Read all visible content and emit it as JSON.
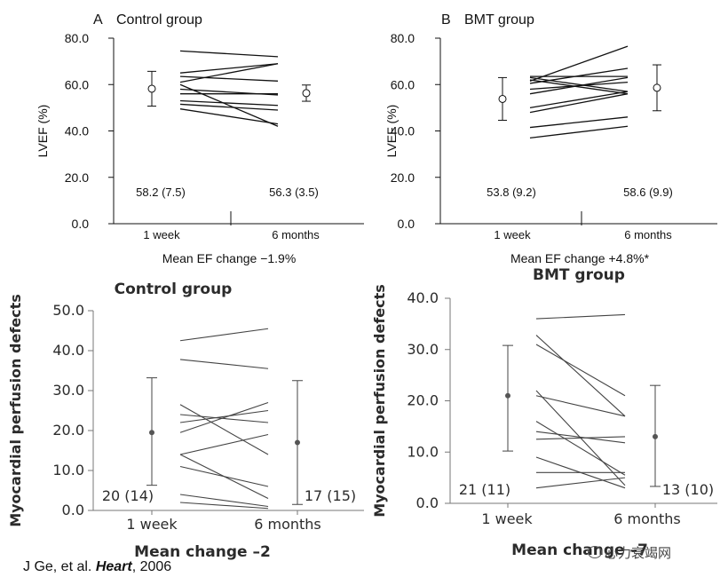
{
  "chart_data": [
    {
      "id": "A",
      "type": "line",
      "panel_letter": "A",
      "title": "Control group",
      "ylabel": "LVEF (%)",
      "ylim": [
        0,
        80
      ],
      "yticks": [
        "0.0",
        "20.0",
        "40.0",
        "60.0",
        "80.0"
      ],
      "yticks_values": [
        0,
        20,
        40,
        60,
        80
      ],
      "categories": [
        "1 week",
        "6 months"
      ],
      "means": [
        58.2,
        56.3
      ],
      "errors": [
        7.5,
        3.5
      ],
      "mean_labels": [
        "58.2 (7.5)",
        "56.3 (3.5)"
      ],
      "footer": "Mean EF change −1.9%",
      "series": [
        {
          "values": [
            74.5,
            72.0
          ]
        },
        {
          "values": [
            65.0,
            69.0
          ]
        },
        {
          "values": [
            63.5,
            61.5
          ]
        },
        {
          "values": [
            61.0,
            69.0
          ]
        },
        {
          "values": [
            60.0,
            42.0
          ]
        },
        {
          "values": [
            58.0,
            55.5
          ]
        },
        {
          "values": [
            56.0,
            56.0
          ]
        },
        {
          "values": [
            53.0,
            51.0
          ]
        },
        {
          "values": [
            51.5,
            49.0
          ]
        },
        {
          "values": [
            49.5,
            43.0
          ]
        }
      ]
    },
    {
      "id": "B",
      "type": "line",
      "panel_letter": "B",
      "title": "BMT group",
      "ylabel": "LVEF (%)",
      "ylim": [
        0,
        80
      ],
      "yticks": [
        "0.0",
        "20.0",
        "40.0",
        "60.0",
        "80.0"
      ],
      "yticks_values": [
        0,
        20,
        40,
        60,
        80
      ],
      "categories": [
        "1 week",
        "6 months"
      ],
      "means": [
        53.8,
        58.6
      ],
      "errors": [
        9.2,
        9.9
      ],
      "mean_labels": [
        "53.8 (9.2)",
        "58.6 (9.9)"
      ],
      "footer": "Mean EF change +4.8%*",
      "series": [
        {
          "values": [
            63.5,
            63.5
          ]
        },
        {
          "values": [
            63.0,
            57.0
          ]
        },
        {
          "values": [
            62.0,
            56.0
          ]
        },
        {
          "values": [
            61.5,
            76.5
          ]
        },
        {
          "values": [
            60.5,
            67.0
          ]
        },
        {
          "values": [
            58.0,
            61.0
          ]
        },
        {
          "values": [
            56.0,
            63.0
          ]
        },
        {
          "values": [
            50.0,
            57.0
          ]
        },
        {
          "values": [
            48.0,
            56.0
          ]
        },
        {
          "values": [
            41.5,
            46.0
          ]
        },
        {
          "values": [
            37.0,
            42.0
          ]
        }
      ]
    },
    {
      "id": "C",
      "type": "line",
      "title": "Control group",
      "ylabel": "Myocardial perfusion defects",
      "ylim": [
        0,
        50
      ],
      "yticks": [
        "0.0",
        "10.0",
        "20.0",
        "30.0",
        "40.0",
        "50.0"
      ],
      "yticks_values": [
        0,
        10,
        20,
        30,
        40,
        50
      ],
      "categories": [
        "1 week",
        "6 months"
      ],
      "means": [
        19.5,
        17.0
      ],
      "error_ranges": [
        [
          6.3,
          33.2
        ],
        [
          1.5,
          32.5
        ]
      ],
      "mean_labels": [
        "20 (14)",
        "17 (15)"
      ],
      "footer": "Mean change –2",
      "series": [
        {
          "values": [
            42.5,
            45.5
          ]
        },
        {
          "values": [
            37.8,
            35.5
          ]
        },
        {
          "values": [
            26.5,
            14.0
          ]
        },
        {
          "values": [
            24.0,
            22.0
          ]
        },
        {
          "values": [
            22.0,
            25.0
          ]
        },
        {
          "values": [
            19.5,
            27.0
          ]
        },
        {
          "values": [
            14.0,
            19.0
          ]
        },
        {
          "values": [
            14.0,
            3.0
          ]
        },
        {
          "values": [
            11.0,
            6.0
          ]
        },
        {
          "values": [
            4.0,
            1.0
          ]
        },
        {
          "values": [
            2.0,
            0.5
          ]
        }
      ]
    },
    {
      "id": "D",
      "type": "line",
      "title": "BMT group",
      "ylabel": "Myocardial perfusion defects",
      "ylim": [
        0,
        40
      ],
      "yticks": [
        "0.0",
        "10.0",
        "20.0",
        "30.0",
        "40.0"
      ],
      "yticks_values": [
        0,
        10,
        20,
        30,
        40
      ],
      "categories": [
        "1 week",
        "6 months"
      ],
      "means": [
        21.0,
        13.0
      ],
      "error_ranges": [
        [
          10.2,
          30.8
        ],
        [
          3.3,
          23.0
        ]
      ],
      "mean_labels": [
        "21 (11)",
        "13 (10)"
      ],
      "footer": "Mean change –7",
      "series": [
        {
          "values": [
            36.0,
            36.8
          ]
        },
        {
          "values": [
            32.8,
            17.0
          ]
        },
        {
          "values": [
            31.0,
            21.0
          ]
        },
        {
          "values": [
            22.0,
            3.5
          ]
        },
        {
          "values": [
            21.0,
            17.0
          ]
        },
        {
          "values": [
            16.0,
            5.5
          ]
        },
        {
          "values": [
            14.0,
            11.8
          ]
        },
        {
          "values": [
            12.5,
            13.0
          ]
        },
        {
          "values": [
            9.0,
            3.0
          ]
        },
        {
          "values": [
            6.0,
            6.0
          ]
        },
        {
          "values": [
            3.0,
            5.0
          ]
        }
      ]
    }
  ],
  "citation": {
    "prefix": "J Ge, et al. ",
    "journal": "Heart",
    "suffix": ", 2006"
  },
  "watermark": "心力衰竭网"
}
